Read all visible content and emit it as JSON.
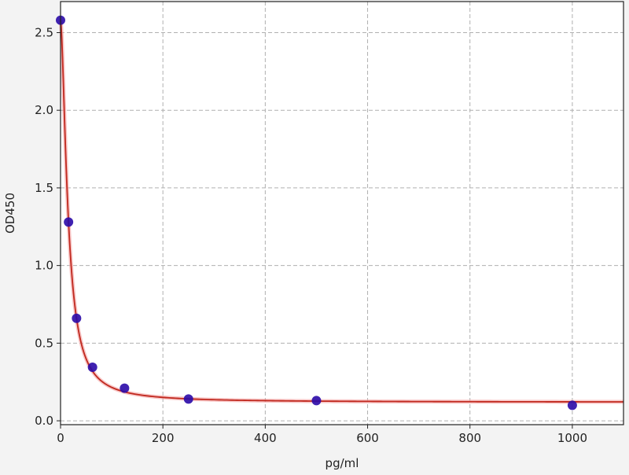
{
  "chart_data": {
    "type": "scatter",
    "title": "",
    "xlabel": "pg/ml",
    "ylabel": "OD450",
    "xlim": [
      0,
      1100
    ],
    "ylim": [
      -0.025,
      2.7
    ],
    "xticks": [
      0,
      200,
      400,
      600,
      800,
      1000
    ],
    "xtick_labels": [
      "0",
      "200",
      "400",
      "600",
      "800",
      "1000"
    ],
    "yticks": [
      0.0,
      0.5,
      1.0,
      1.5,
      2.0,
      2.5
    ],
    "ytick_labels": [
      "0.0",
      "0.5",
      "1.0",
      "1.5",
      "2.0",
      "2.5"
    ],
    "grid": true,
    "grid_style": "dashed",
    "series": [
      {
        "kind": "points",
        "x": [
          0,
          15.6,
          31.25,
          62.5,
          125,
          250,
          500,
          1000
        ],
        "y": [
          2.58,
          1.28,
          0.66,
          0.345,
          0.21,
          0.14,
          0.13,
          0.1
        ],
        "color": "#2a0aa8"
      },
      {
        "kind": "fit-curve",
        "color": "#c0281e"
      }
    ]
  }
}
